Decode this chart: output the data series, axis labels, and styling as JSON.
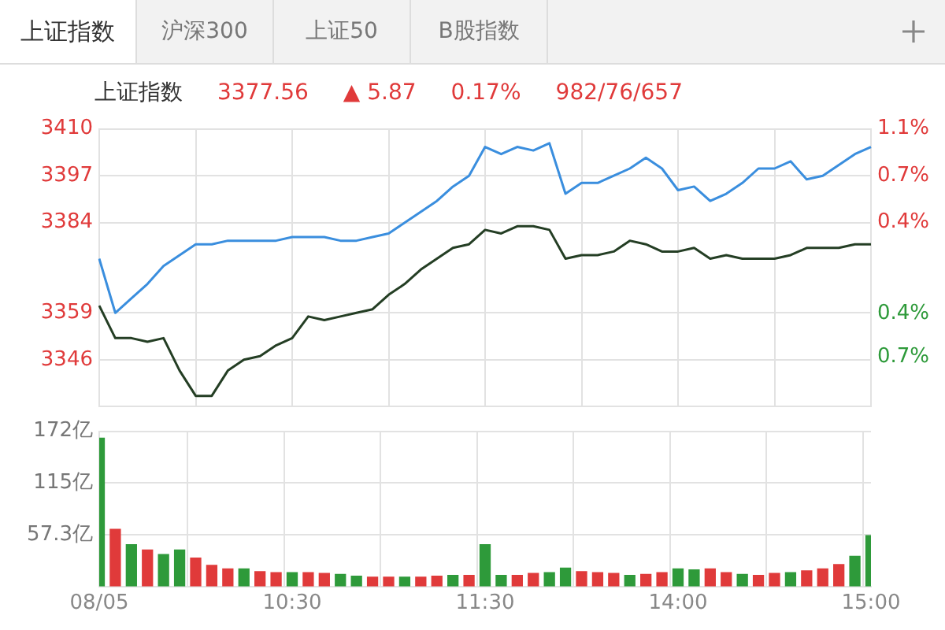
{
  "chart_data": [
    {
      "type": "line",
      "annotations": [
        "上证指数",
        "沪深300",
        "上证50",
        "B股指数",
        "上证指数",
        "3377.56",
        "▲ 5.87",
        "0.17%",
        "982/76/657"
      ],
      "ylim": [
        3333,
        3410
      ],
      "yticks": [
        3410,
        3397,
        3384,
        3359,
        3346
      ],
      "y2lim": [
        -1.15,
        1.14
      ],
      "y2ticks": [
        {
          "value": 1.14,
          "label": "1.1%"
        },
        {
          "value": 0.75,
          "label": "0.7%"
        },
        {
          "value": 0.37,
          "label": "0.4%"
        },
        {
          "value": -0.38,
          "label": "0.4%"
        },
        {
          "value": -0.74,
          "label": "0.7%"
        }
      ],
      "grid": true,
      "legend": false,
      "marker": "none",
      "tick_labels": "y",
      "series": [
        {
          "color": "#3a8ede",
          "values": [
            3374,
            3359,
            3363,
            3367,
            3372,
            3375,
            3378,
            3378,
            3379,
            3379,
            3379,
            3379,
            3380,
            3380,
            3380,
            3379,
            3379,
            3380,
            3381,
            3384,
            3387,
            3390,
            3394,
            3397,
            3405,
            3403,
            3405,
            3404,
            3406,
            3392,
            3395,
            3395,
            3397,
            3399,
            3402,
            3399,
            3393,
            3394,
            3390,
            3392,
            3395,
            3399,
            3399,
            3401,
            3396,
            3397,
            3400,
            3403,
            3405
          ]
        },
        {
          "color": "#243e24",
          "values": [
            3361,
            3352,
            3352,
            3351,
            3352,
            3343,
            3336,
            3336,
            3343,
            3346,
            3347,
            3350,
            3352,
            3358,
            3357,
            3358,
            3359,
            3360,
            3364,
            3367,
            3371,
            3374,
            3377,
            3378,
            3382,
            3381,
            3383,
            3383,
            3382,
            3374,
            3375,
            3375,
            3376,
            3379,
            3378,
            3376,
            3376,
            3377,
            3374,
            3375,
            3374,
            3374,
            3374,
            3375,
            3377,
            3377,
            3377,
            3378,
            3378
          ]
        }
      ]
    },
    {
      "type": "bar",
      "categories": [
        "08/05",
        null,
        null,
        null,
        null,
        null,
        null,
        null,
        null,
        null,
        null,
        null,
        "10:30",
        null,
        null,
        null,
        null,
        null,
        null,
        null,
        null,
        null,
        null,
        null,
        "11:30",
        null,
        null,
        null,
        null,
        null,
        null,
        null,
        null,
        null,
        null,
        null,
        "14:00",
        null,
        null,
        null,
        null,
        null,
        null,
        null,
        null,
        null,
        null,
        null,
        "15:00"
      ],
      "ylim": [
        0,
        172
      ],
      "yticks": [
        {
          "value": 57.3,
          "label": "57.3亿"
        },
        {
          "value": 115,
          "label": "115亿"
        },
        {
          "value": 172,
          "label": "172亿"
        }
      ],
      "grid": true,
      "legend": false,
      "values": [
        165,
        64,
        47,
        41,
        36,
        41,
        32,
        24,
        20,
        20,
        17,
        16,
        16,
        16,
        15,
        14,
        12,
        11,
        11,
        11,
        11,
        12,
        13,
        13,
        47,
        13,
        13,
        15,
        16,
        21,
        17,
        16,
        15,
        13,
        14,
        16,
        20,
        19,
        20,
        16,
        14,
        13,
        15,
        16,
        18,
        20,
        25,
        34,
        57
      ],
      "colors": [
        "#2e9a3a",
        "#e03a3a",
        "#2e9a3a",
        "#e03a3a",
        "#2e9a3a",
        "#2e9a3a",
        "#e03a3a",
        "#e03a3a",
        "#e03a3a",
        "#2e9a3a",
        "#e03a3a",
        "#e03a3a",
        "#2e9a3a",
        "#e03a3a",
        "#e03a3a",
        "#2e9a3a",
        "#2e9a3a",
        "#e03a3a",
        "#e03a3a",
        "#2e9a3a",
        "#e03a3a",
        "#e03a3a",
        "#2e9a3a",
        "#e03a3a",
        "#2e9a3a",
        "#2e9a3a",
        "#e03a3a",
        "#e03a3a",
        "#2e9a3a",
        "#2e9a3a",
        "#e03a3a",
        "#e03a3a",
        "#e03a3a",
        "#2e9a3a",
        "#e03a3a",
        "#e03a3a",
        "#2e9a3a",
        "#2e9a3a",
        "#e03a3a",
        "#e03a3a",
        "#2e9a3a",
        "#e03a3a",
        "#e03a3a",
        "#2e9a3a",
        "#e03a3a",
        "#e03a3a",
        "#e03a3a",
        "#2e9a3a",
        "#2e9a3a"
      ]
    }
  ]
}
